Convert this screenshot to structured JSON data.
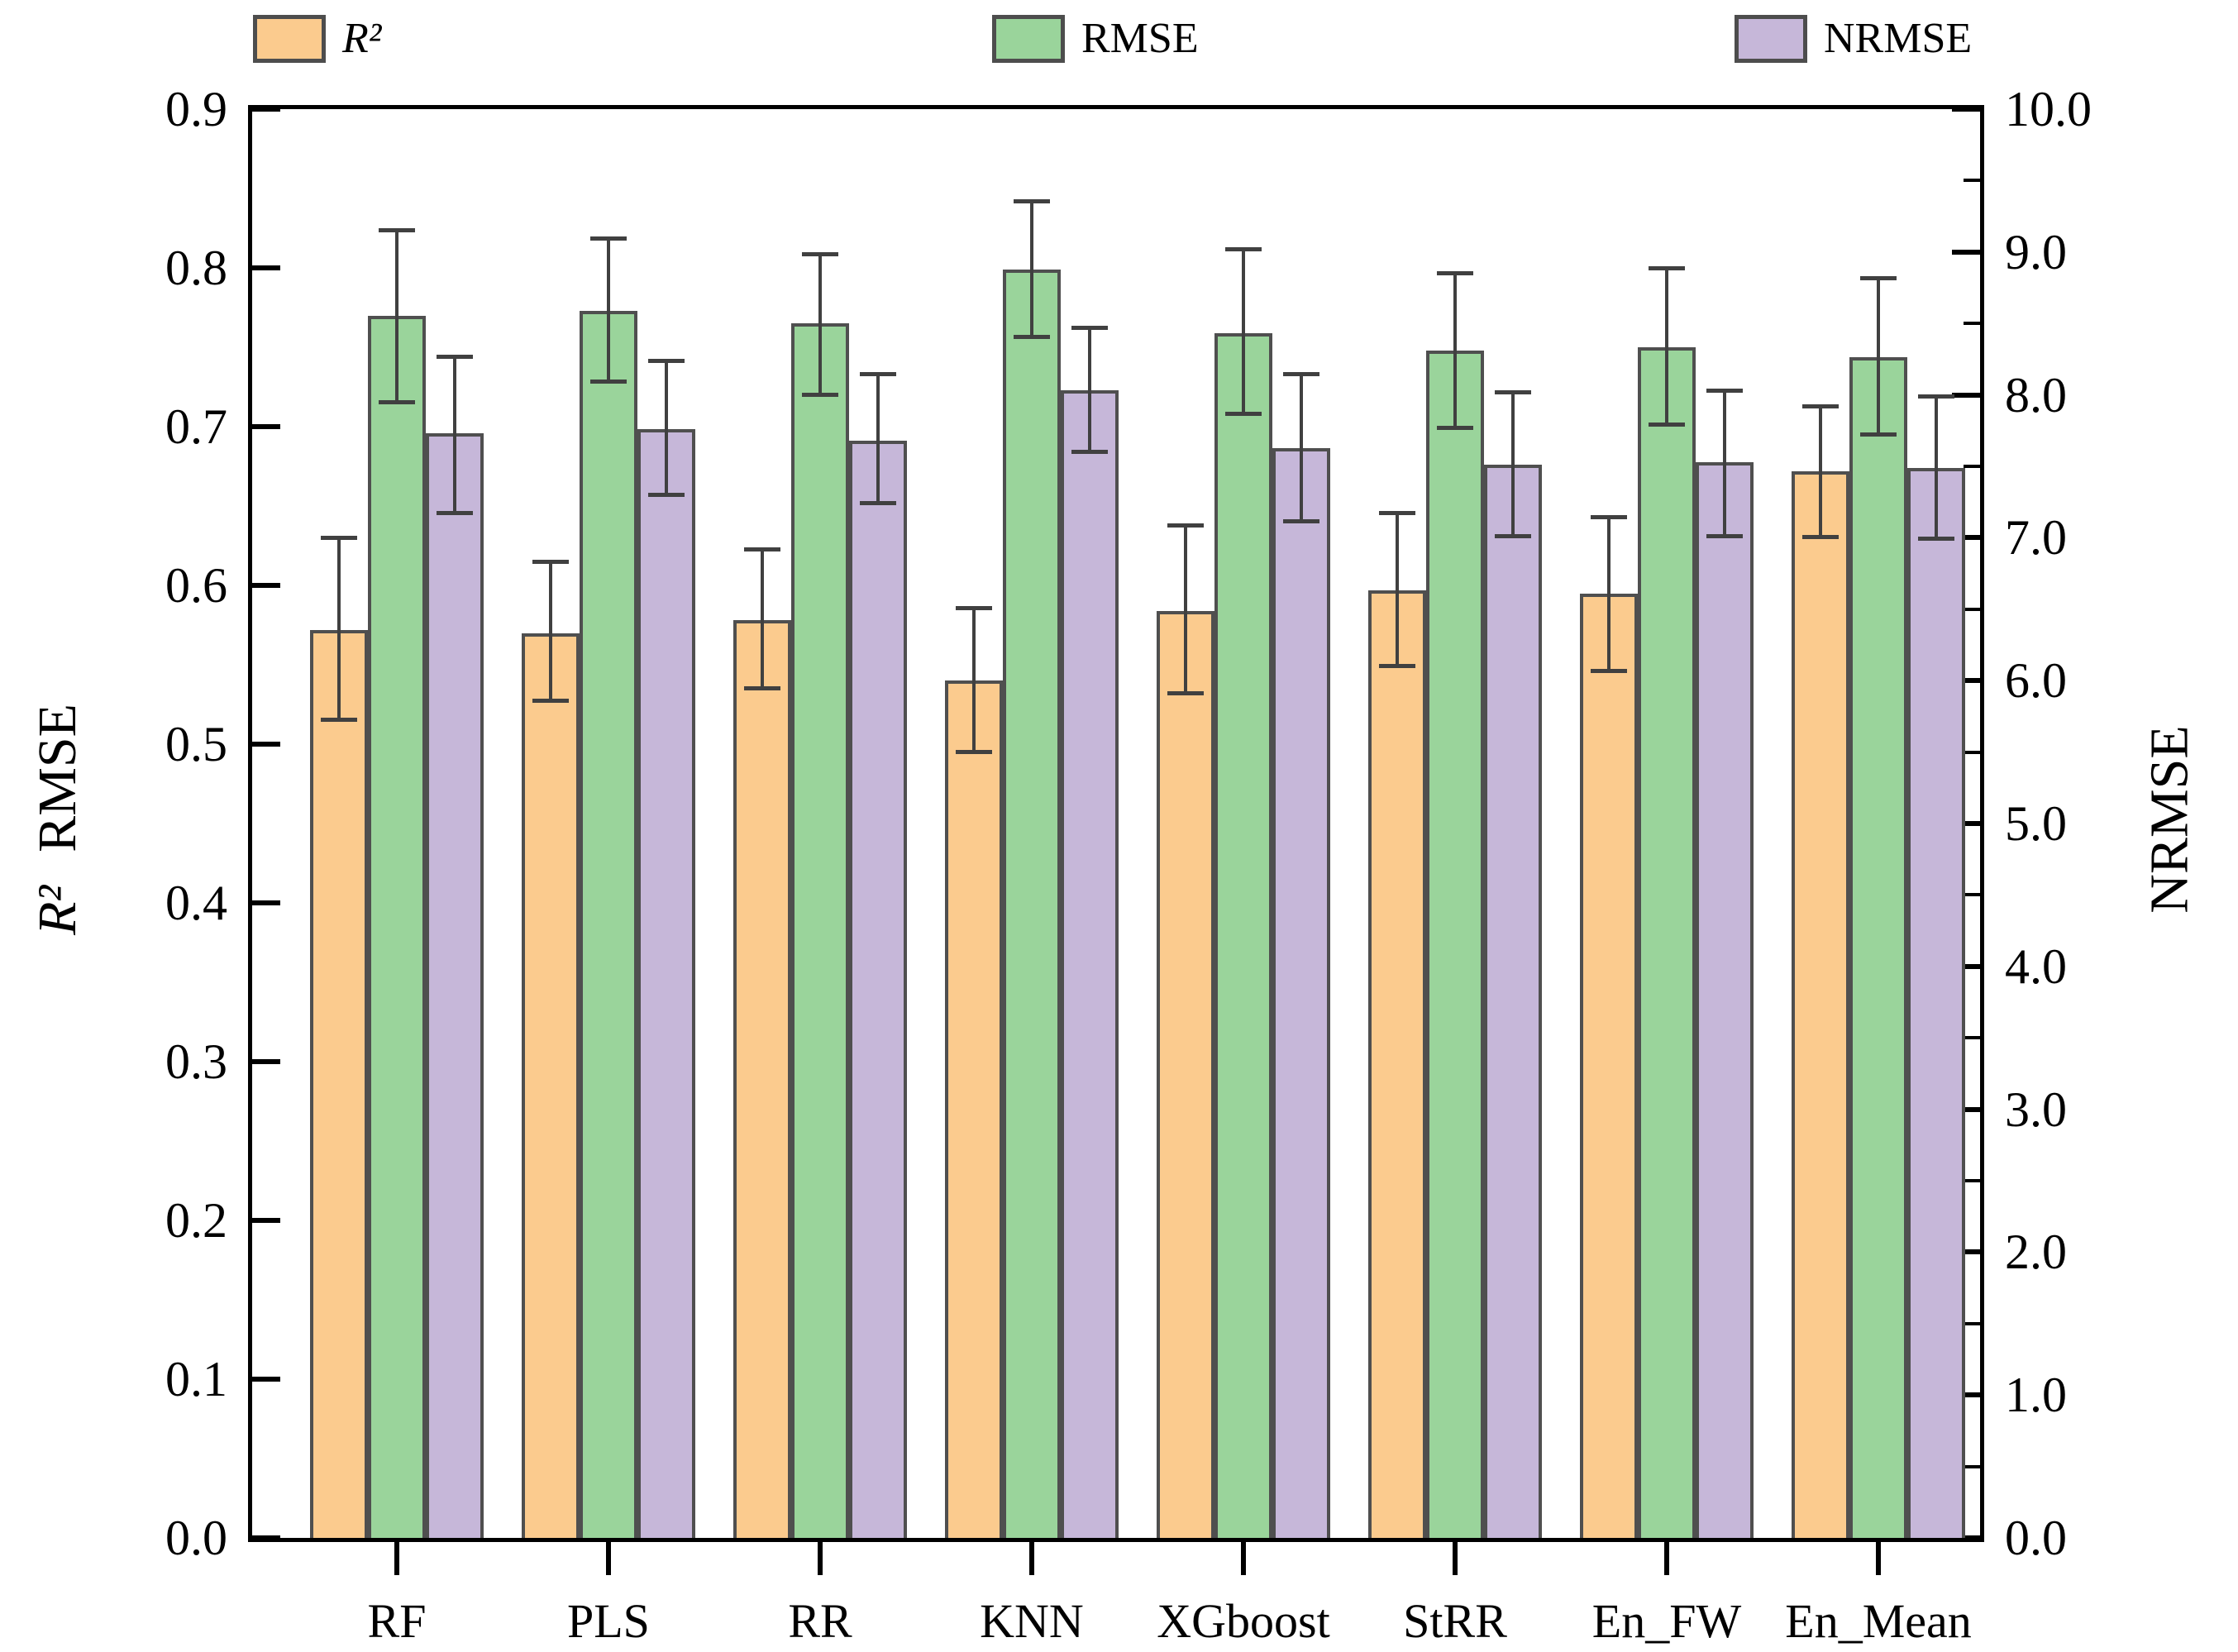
{
  "figure": {
    "legend": [
      {
        "label": "R²",
        "color": "#FBCB8E"
      },
      {
        "label": "RMSE",
        "color": "#9AD49B"
      },
      {
        "label": "NRMSE",
        "color": "#C6B7D9"
      }
    ],
    "left_axis": {
      "title_r2": "R²",
      "title_rmse": "RMSE",
      "tick_labels": [
        "0.0",
        "0.1",
        "0.2",
        "0.3",
        "0.4",
        "0.5",
        "0.6",
        "0.7",
        "0.8",
        "0.9"
      ]
    },
    "right_axis": {
      "title": "NRMSE",
      "tick_labels": [
        "0.0",
        "1.0",
        "2.0",
        "3.0",
        "4.0",
        "5.0",
        "6.0",
        "7.0",
        "8.0",
        "9.0",
        "10.0"
      ]
    }
  },
  "chart_data": {
    "type": "bar",
    "title": "",
    "categories": [
      "RF",
      "PLS",
      "RR",
      "KNN",
      "XGboost",
      "StRR",
      "En_FW",
      "En_Mean"
    ],
    "legend_position": "top",
    "grid": false,
    "left_axis_label": "R²  RMSE",
    "right_axis_label": "NRMSE",
    "left_axis_range": [
      0.0,
      0.9
    ],
    "right_axis_range": [
      0.0,
      10.0
    ],
    "series": [
      {
        "name": "R²",
        "axis": "left",
        "color": "#FBCB8E",
        "values": [
          0.572,
          0.57,
          0.578,
          0.54,
          0.584,
          0.597,
          0.595,
          0.672
        ],
        "err_up": [
          0.058,
          0.045,
          0.045,
          0.046,
          0.054,
          0.049,
          0.048,
          0.041
        ],
        "err_down": [
          0.057,
          0.043,
          0.043,
          0.045,
          0.052,
          0.048,
          0.049,
          0.042
        ]
      },
      {
        "name": "RMSE",
        "axis": "left",
        "color": "#9AD49B",
        "values": [
          0.77,
          0.773,
          0.765,
          0.799,
          0.759,
          0.748,
          0.75,
          0.744
        ],
        "err_up": [
          0.054,
          0.046,
          0.044,
          0.043,
          0.053,
          0.049,
          0.05,
          0.05
        ],
        "err_down": [
          0.055,
          0.045,
          0.045,
          0.043,
          0.051,
          0.049,
          0.049,
          0.049
        ]
      },
      {
        "name": "NRMSE",
        "axis": "right",
        "color": "#C6B7D9",
        "values": [
          7.73,
          7.76,
          7.68,
          8.03,
          7.63,
          7.51,
          7.53,
          7.49
        ],
        "err_up": [
          0.54,
          0.48,
          0.47,
          0.44,
          0.52,
          0.51,
          0.5,
          0.5
        ],
        "err_down": [
          0.56,
          0.46,
          0.44,
          0.43,
          0.52,
          0.5,
          0.52,
          0.5
        ]
      }
    ]
  }
}
